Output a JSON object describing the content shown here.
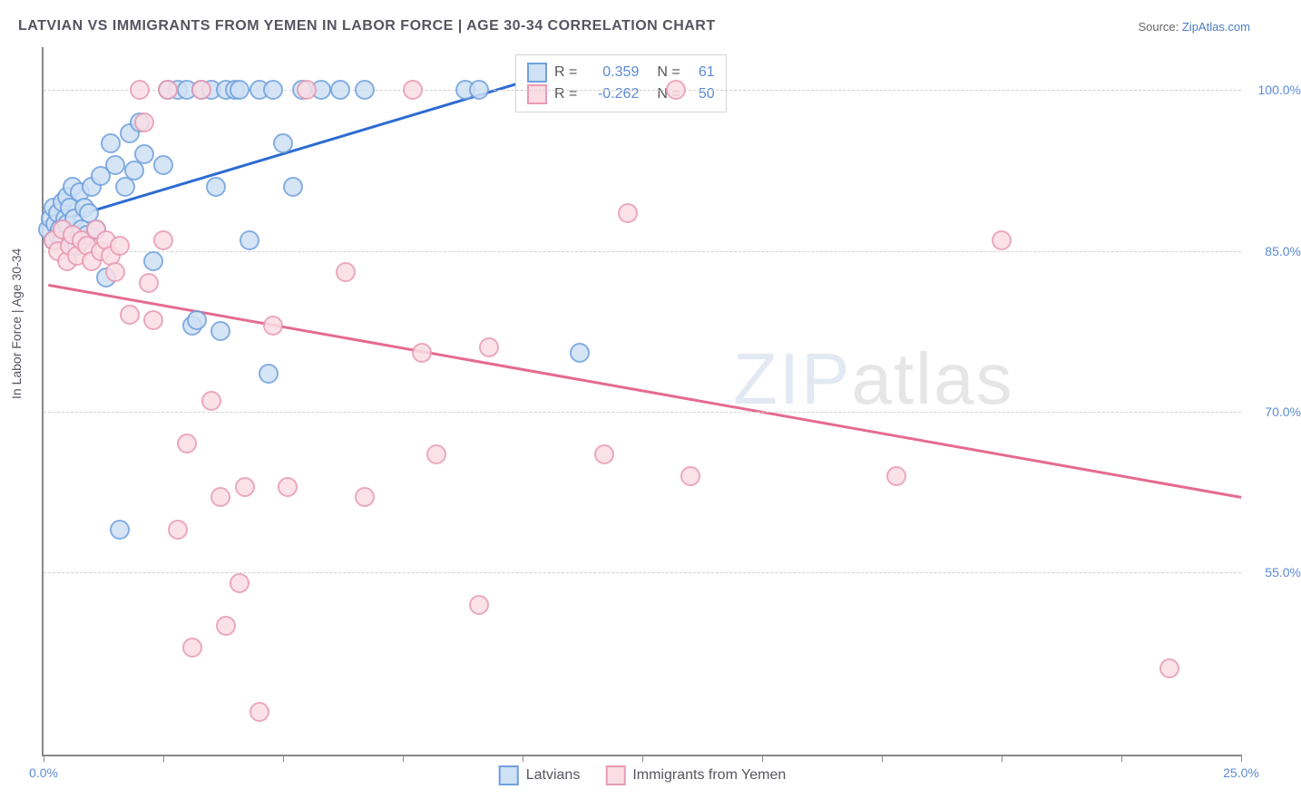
{
  "title": "LATVIAN VS IMMIGRANTS FROM YEMEN IN LABOR FORCE | AGE 30-34 CORRELATION CHART",
  "source_prefix": "Source: ",
  "source_link": "ZipAtlas.com",
  "ylabel": "In Labor Force | Age 30-34",
  "watermark_a": "ZIP",
  "watermark_b": "atlas",
  "chart": {
    "type": "scatter",
    "xlim": [
      0,
      25
    ],
    "ylim": [
      38,
      104
    ],
    "xticks": [
      0,
      2.5,
      5,
      7.5,
      10,
      12.5,
      15,
      17.5,
      20,
      22.5,
      25
    ],
    "xtick_labels": {
      "0": "0.0%",
      "25": "25.0%"
    },
    "yticks": [
      55,
      70,
      85,
      100
    ],
    "ytick_labels": {
      "55": "55.0%",
      "70": "70.0%",
      "85": "85.0%",
      "100": "100.0%"
    },
    "grid_color": "#d0d0d0",
    "axis_color": "#888888",
    "background": "#ffffff",
    "marker_radius": 9,
    "colors": {
      "latvians_fill": "#cfe1f5",
      "latvians_stroke": "#6fa1dd",
      "latvians_line": "#2e6bd1",
      "yemen_fill": "#fadde5",
      "yemen_stroke": "#e99ab2",
      "yemen_line": "#e56b8e",
      "text_blue": "#5b8bd4"
    },
    "series": [
      {
        "name": "Latvians",
        "key": "latvians",
        "R": "0.359",
        "N": "61",
        "trend": {
          "x1": 0.1,
          "y1": 87.5,
          "x2": 10.2,
          "y2": 101.0
        },
        "points": [
          [
            0.1,
            87
          ],
          [
            0.15,
            88
          ],
          [
            0.2,
            86
          ],
          [
            0.2,
            89
          ],
          [
            0.25,
            87.5
          ],
          [
            0.3,
            86.5
          ],
          [
            0.3,
            88.5
          ],
          [
            0.35,
            87
          ],
          [
            0.4,
            89.5
          ],
          [
            0.4,
            86
          ],
          [
            0.45,
            88
          ],
          [
            0.5,
            90
          ],
          [
            0.5,
            87.5
          ],
          [
            0.55,
            89
          ],
          [
            0.6,
            91
          ],
          [
            0.65,
            88
          ],
          [
            0.7,
            85.5
          ],
          [
            0.75,
            90.5
          ],
          [
            0.8,
            87
          ],
          [
            0.85,
            89
          ],
          [
            0.9,
            86.5
          ],
          [
            0.95,
            88.5
          ],
          [
            1.0,
            91
          ],
          [
            1.1,
            87
          ],
          [
            1.2,
            92
          ],
          [
            1.3,
            82.5
          ],
          [
            1.4,
            95
          ],
          [
            1.5,
            93
          ],
          [
            1.6,
            59
          ],
          [
            1.7,
            91
          ],
          [
            1.8,
            96
          ],
          [
            1.9,
            92.5
          ],
          [
            2.0,
            97
          ],
          [
            2.1,
            94
          ],
          [
            2.3,
            84
          ],
          [
            2.5,
            93
          ],
          [
            2.6,
            100
          ],
          [
            2.8,
            100
          ],
          [
            3.0,
            100
          ],
          [
            3.1,
            78
          ],
          [
            3.2,
            78.5
          ],
          [
            3.3,
            100
          ],
          [
            3.5,
            100
          ],
          [
            3.6,
            91
          ],
          [
            3.7,
            77.5
          ],
          [
            3.8,
            100
          ],
          [
            4.0,
            100
          ],
          [
            4.1,
            100
          ],
          [
            4.3,
            86
          ],
          [
            4.5,
            100
          ],
          [
            4.7,
            73.5
          ],
          [
            4.8,
            100
          ],
          [
            5.0,
            95
          ],
          [
            5.2,
            91
          ],
          [
            5.4,
            100
          ],
          [
            5.8,
            100
          ],
          [
            6.2,
            100
          ],
          [
            6.7,
            100
          ],
          [
            8.8,
            100
          ],
          [
            9.1,
            100
          ],
          [
            11.2,
            75.5
          ]
        ]
      },
      {
        "name": "Immigrants from Yemen",
        "key": "yemen",
        "R": "-0.262",
        "N": "50",
        "trend": {
          "x1": 0.1,
          "y1": 81.8,
          "x2": 25.0,
          "y2": 62.0
        },
        "points": [
          [
            0.2,
            86
          ],
          [
            0.3,
            85
          ],
          [
            0.4,
            87
          ],
          [
            0.5,
            84
          ],
          [
            0.55,
            85.5
          ],
          [
            0.6,
            86.5
          ],
          [
            0.7,
            84.5
          ],
          [
            0.8,
            86
          ],
          [
            0.9,
            85.5
          ],
          [
            1.0,
            84
          ],
          [
            1.1,
            87
          ],
          [
            1.2,
            85
          ],
          [
            1.3,
            86
          ],
          [
            1.4,
            84.5
          ],
          [
            1.5,
            83
          ],
          [
            1.6,
            85.5
          ],
          [
            1.8,
            79
          ],
          [
            2.0,
            100
          ],
          [
            2.1,
            97
          ],
          [
            2.2,
            82
          ],
          [
            2.3,
            78.5
          ],
          [
            2.5,
            86
          ],
          [
            2.6,
            100
          ],
          [
            2.8,
            59
          ],
          [
            3.0,
            67
          ],
          [
            3.1,
            48
          ],
          [
            3.3,
            100
          ],
          [
            3.5,
            71
          ],
          [
            3.7,
            62
          ],
          [
            3.8,
            50
          ],
          [
            4.1,
            54
          ],
          [
            4.2,
            63
          ],
          [
            4.5,
            42
          ],
          [
            4.8,
            78
          ],
          [
            5.1,
            63
          ],
          [
            5.5,
            100
          ],
          [
            6.3,
            83
          ],
          [
            6.7,
            62
          ],
          [
            7.7,
            100
          ],
          [
            7.9,
            75.5
          ],
          [
            8.2,
            66
          ],
          [
            9.1,
            52
          ],
          [
            9.3,
            76
          ],
          [
            11.7,
            66
          ],
          [
            12.2,
            88.5
          ],
          [
            13.2,
            100
          ],
          [
            13.5,
            64
          ],
          [
            17.8,
            64
          ],
          [
            20.0,
            86
          ],
          [
            23.5,
            46
          ]
        ]
      }
    ],
    "legend_top": {
      "R_label": "R =",
      "N_label": "N ="
    },
    "legend_bottom": [
      "Latvians",
      "Immigrants from Yemen"
    ]
  }
}
